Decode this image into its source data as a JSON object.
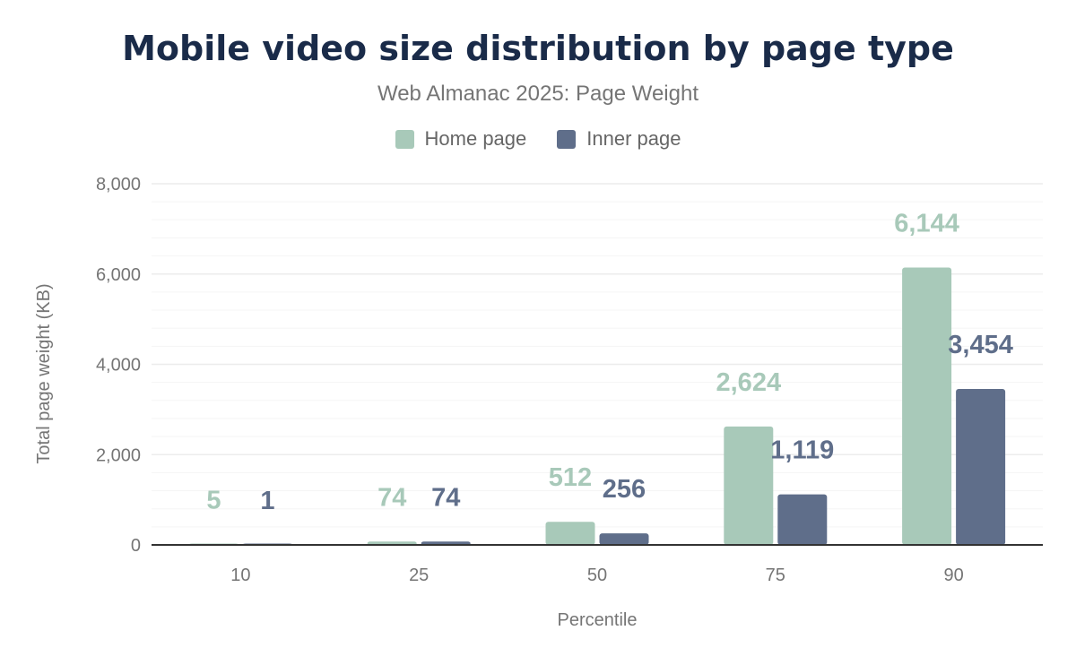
{
  "chart_data": {
    "type": "bar",
    "title": "Mobile video size distribution by page type",
    "subtitle": "Web Almanac 2025: Page Weight",
    "xlabel": "Percentile",
    "ylabel": "Total page weight (KB)",
    "categories": [
      "10",
      "25",
      "50",
      "75",
      "90"
    ],
    "series": [
      {
        "name": "Home page",
        "color": "#a8c9b9",
        "values": [
          5,
          74,
          512,
          2624,
          6144
        ],
        "labels": [
          "5",
          "74",
          "512",
          "2,624",
          "6,144"
        ]
      },
      {
        "name": "Inner page",
        "color": "#5f6e8a",
        "values": [
          1,
          74,
          256,
          1119,
          3454
        ],
        "labels": [
          "1",
          "74",
          "256",
          "1,119",
          "3,454"
        ]
      }
    ],
    "ylim": [
      0,
      8000
    ],
    "yticks": [
      0,
      2000,
      4000,
      6000,
      8000
    ],
    "ytick_labels": [
      "0",
      "2,000",
      "4,000",
      "6,000",
      "8,000"
    ],
    "minor_grid_step": 400,
    "grid": true,
    "legend_position": "top-center"
  }
}
